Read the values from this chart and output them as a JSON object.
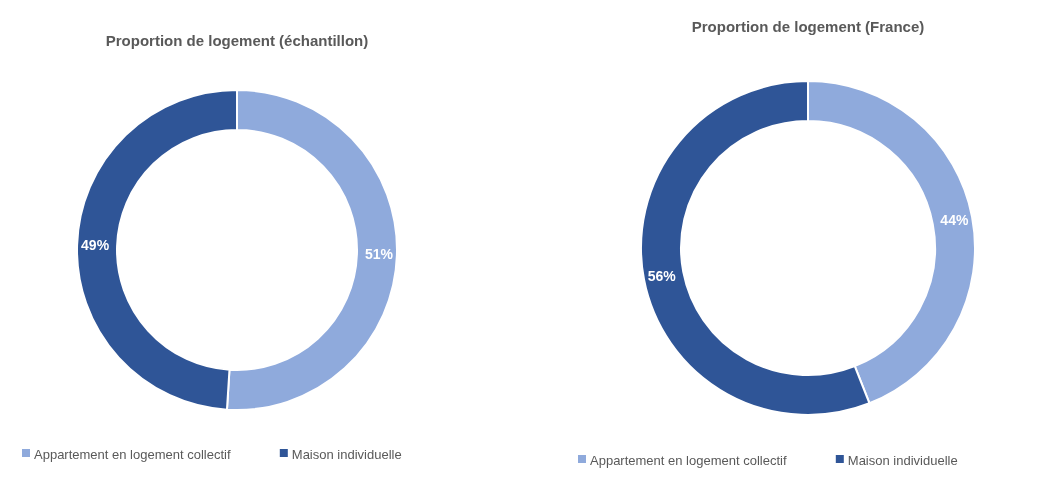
{
  "chart_data": [
    {
      "type": "donut",
      "title": "Proportion de logement (échantillon)",
      "categories": [
        "Appartement en logement collectif",
        "Maison individuelle"
      ],
      "values": [
        51,
        49
      ],
      "value_labels": [
        "51%",
        "49%"
      ],
      "colors": [
        "#8faadc",
        "#2f5597"
      ],
      "legend": "bottom"
    },
    {
      "type": "donut",
      "title": "Proportion de logement (France)",
      "categories": [
        "Appartement en logement collectif",
        "Maison individuelle"
      ],
      "values": [
        44,
        56
      ],
      "value_labels": [
        "44%",
        "56%"
      ],
      "colors": [
        "#8faadc",
        "#2f5597"
      ],
      "legend": "bottom"
    }
  ]
}
